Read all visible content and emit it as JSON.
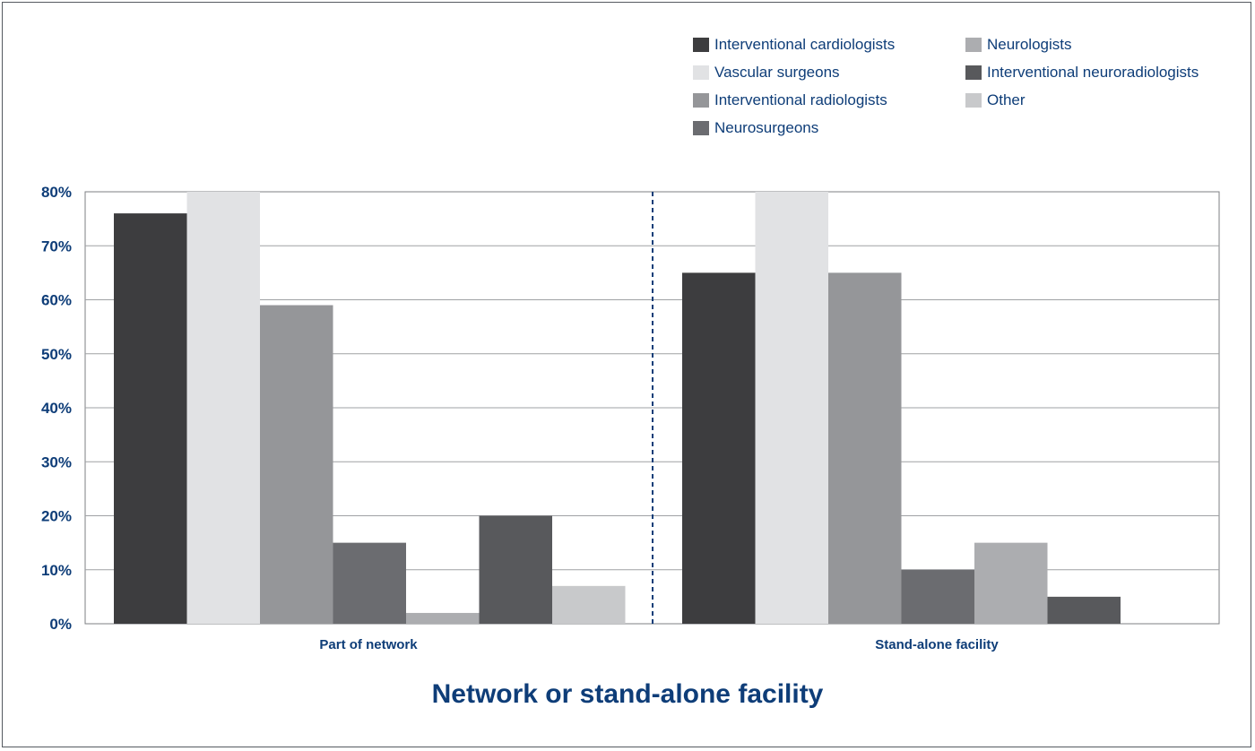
{
  "chart_data": {
    "type": "bar",
    "title": "",
    "xlabel": "Network or stand-alone facility",
    "ylabel": "",
    "categories": [
      "Part of network",
      "Stand-alone facility"
    ],
    "yticks": [
      "0%",
      "10%",
      "20%",
      "30%",
      "40%",
      "50%",
      "60%",
      "70%",
      "80%"
    ],
    "ylim": [
      0,
      80
    ],
    "grid": true,
    "legend_position": "top-right",
    "series": [
      {
        "name": "Interventional cardiologists",
        "color": "#3d3d3f",
        "values": [
          76,
          65
        ]
      },
      {
        "name": "Vascular surgeons",
        "color": "#e1e2e4",
        "values": [
          80,
          80
        ]
      },
      {
        "name": "Interventional radiologists",
        "color": "#959699",
        "values": [
          59,
          65
        ]
      },
      {
        "name": "Neurosurgeons",
        "color": "#6b6c70",
        "values": [
          15,
          10
        ]
      },
      {
        "name": "Neurologists",
        "color": "#acadb0",
        "values": [
          2,
          15
        ]
      },
      {
        "name": "Interventional neuroradiologists",
        "color": "#58595c",
        "values": [
          20,
          5
        ]
      },
      {
        "name": "Other",
        "color": "#c8c9cb",
        "values": [
          7,
          0
        ]
      }
    ]
  }
}
